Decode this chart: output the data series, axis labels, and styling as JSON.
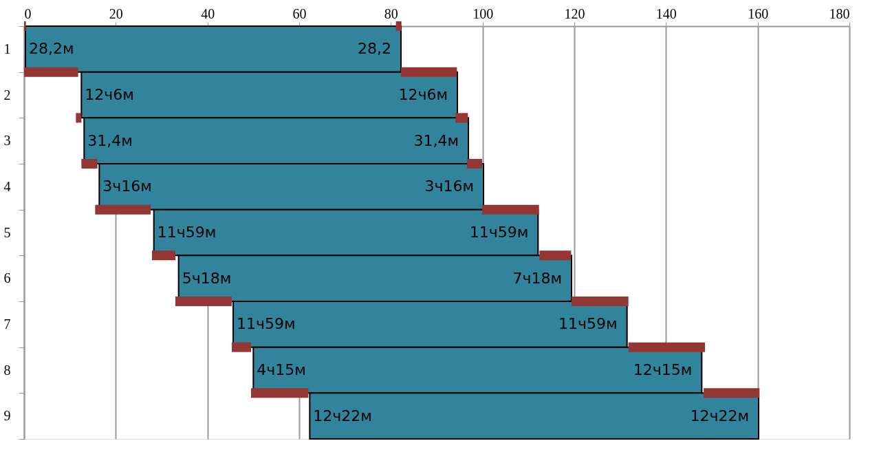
{
  "chart_data": {
    "type": "bar",
    "orientation": "horizontal",
    "categories": [
      "1",
      "2",
      "3",
      "4",
      "5",
      "6",
      "7",
      "8",
      "9"
    ],
    "series": [
      {
        "color": "#31849b",
        "base": [
          0.3,
          12.5,
          13.1,
          16.4,
          28.3,
          33.7,
          45.6,
          50.0,
          62.3
        ],
        "values": [
          81.9,
          82.0,
          83.8,
          83.8,
          83.8,
          85.7,
          85.9,
          97.8,
          97.9
        ]
      },
      {
        "color": "#943634",
        "base": [
          0,
          0,
          11.3,
          12.5,
          15.5,
          27.9,
          33.0,
          45.3,
          49.5
        ],
        "values": [
          0.4,
          11.8,
          1.2,
          3.5,
          12.1,
          5.1,
          12.3,
          4.2,
          12.5
        ]
      },
      {
        "color": "#943634",
        "base": [
          81.1,
          82.2,
          94.1,
          96.6,
          99.9,
          112.4,
          119.4,
          131.8,
          148.2
        ],
        "values": [
          1.2,
          12.2,
          2.7,
          3.3,
          12.4,
          6.9,
          12.4,
          16.7,
          12.2
        ]
      }
    ],
    "xlim": [
      0,
      180
    ],
    "xticks": [
      0,
      20,
      40,
      60,
      80,
      100,
      120,
      140,
      160,
      180
    ],
    "grid": "x",
    "annotations": [
      {
        "text": "28,2м",
        "x": 0.3,
        "y": "1"
      },
      {
        "text": "12ч6м",
        "x": 12.5,
        "y": "2"
      },
      {
        "text": "31,4м",
        "x": 13.1,
        "y": "3"
      },
      {
        "text": "3ч16м",
        "x": 16.4,
        "y": "4"
      },
      {
        "text": "11ч59м",
        "x": 28.3,
        "y": "5"
      },
      {
        "text": "5ч18м",
        "x": 33.7,
        "y": "6"
      },
      {
        "text": "11ч59м",
        "x": 45.6,
        "y": "7"
      },
      {
        "text": "4ч15м",
        "x": 50.0,
        "y": "8"
      },
      {
        "text": "12ч22м",
        "x": 62.3,
        "y": "9"
      },
      {
        "text": "28,2",
        "x": 82.2,
        "y": "1"
      },
      {
        "text": "12ч6м",
        "x": 94.5,
        "y": "2"
      },
      {
        "text": "31,4м",
        "x": 96.9,
        "y": "3"
      },
      {
        "text": "3ч16м",
        "x": 100.2,
        "y": "4"
      },
      {
        "text": "11ч59м",
        "x": 112.1,
        "y": "5"
      },
      {
        "text": "7ч18м",
        "x": 119.4,
        "y": "6"
      },
      {
        "text": "11ч59м",
        "x": 131.5,
        "y": "7"
      },
      {
        "text": "12ч15м",
        "x": 147.8,
        "y": "8"
      },
      {
        "text": "12ч22м",
        "x": 160.2,
        "y": "9"
      }
    ]
  }
}
